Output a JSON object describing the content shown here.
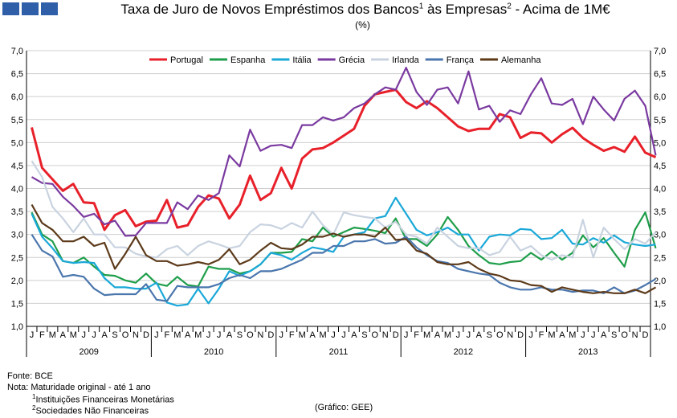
{
  "header": {
    "title_part1": "Taxa de Juro de Novos Empréstimos dos Bancos",
    "title_sup1": "1",
    "title_part2": " às Empresas",
    "title_sup2": "2",
    "title_part3": " - Acima de 1M€",
    "unit": "(%)"
  },
  "footer": {
    "source": "Fonte: BCE",
    "note": "Nota: Maturidade original - até 1 ano",
    "note1_sup": "1",
    "note1": "Instituições Financeiras Monetárias",
    "note2_sup": "2",
    "note2": "Sociedades Não Financeiras",
    "credit": "(Gráfico: GEE)"
  },
  "colors": {
    "header_blocks": "#2f5fa8"
  },
  "chart_data": {
    "type": "line",
    "ylim": [
      1.0,
      7.0
    ],
    "yticks": [
      "1,0",
      "1,5",
      "2,0",
      "2,5",
      "3,0",
      "3,5",
      "4,0",
      "4,5",
      "5,0",
      "5,5",
      "6,0",
      "6,5",
      "7,0"
    ],
    "grid": "horizontal",
    "legend_position": "top",
    "month_labels": [
      "J",
      "F",
      "M",
      "A",
      "M",
      "J",
      "J",
      "A",
      "S",
      "O",
      "N",
      "D"
    ],
    "years": [
      "2009",
      "2010",
      "2011",
      "2012",
      "2013"
    ],
    "series": [
      {
        "name": "Portugal",
        "color": "#e8202a",
        "values": [
          5.33,
          4.45,
          4.2,
          3.95,
          4.1,
          3.7,
          3.68,
          3.1,
          3.42,
          3.53,
          3.18,
          3.28,
          3.3,
          3.75,
          3.15,
          3.2,
          3.6,
          3.85,
          3.78,
          3.35,
          3.65,
          4.28,
          3.75,
          3.9,
          4.45,
          4.0,
          4.65,
          4.85,
          4.88,
          5.0,
          5.15,
          5.3,
          5.8,
          6.05,
          6.1,
          6.15,
          5.88,
          5.75,
          5.9,
          5.75,
          5.55,
          5.35,
          5.25,
          5.3,
          5.3,
          5.62,
          5.55,
          5.1,
          5.22,
          5.2,
          5.0,
          5.18,
          5.32,
          5.1,
          4.95,
          4.82,
          4.9,
          4.8,
          5.13,
          4.78,
          4.68
        ]
      },
      {
        "name": "Espanha",
        "color": "#1e9e4a",
        "values": [
          3.48,
          3.0,
          2.85,
          2.42,
          2.38,
          2.5,
          2.3,
          2.12,
          2.1,
          2.0,
          1.95,
          2.15,
          1.93,
          1.88,
          2.08,
          1.9,
          1.87,
          2.3,
          2.25,
          2.25,
          2.15,
          2.2,
          2.35,
          2.6,
          2.6,
          2.62,
          2.9,
          2.85,
          3.15,
          2.95,
          3.05,
          3.15,
          3.12,
          3.08,
          3.03,
          3.35,
          2.9,
          2.9,
          2.75,
          3.0,
          3.38,
          3.1,
          2.75,
          2.55,
          2.38,
          2.35,
          2.4,
          2.42,
          2.6,
          2.45,
          2.63,
          2.45,
          2.6,
          2.98,
          2.72,
          2.92,
          2.6,
          2.3,
          3.1,
          3.48,
          2.7
        ]
      },
      {
        "name": "Itália",
        "color": "#1aa8d8",
        "values": [
          3.45,
          2.95,
          2.7,
          2.42,
          2.38,
          2.4,
          2.38,
          2.05,
          1.85,
          1.85,
          1.82,
          1.82,
          1.95,
          1.52,
          1.45,
          1.48,
          1.82,
          1.5,
          1.82,
          2.2,
          2.1,
          2.2,
          2.35,
          2.6,
          2.55,
          2.45,
          2.6,
          2.72,
          2.68,
          2.62,
          2.95,
          3.0,
          3.05,
          3.35,
          3.4,
          3.8,
          3.45,
          3.1,
          2.98,
          3.05,
          3.15,
          3.0,
          3.0,
          2.65,
          2.95,
          3.0,
          2.98,
          3.12,
          3.1,
          2.9,
          2.92,
          3.1,
          2.8,
          2.78,
          2.92,
          2.82,
          2.98,
          2.83,
          2.78,
          2.75,
          2.78
        ]
      },
      {
        "name": "Grécia",
        "color": "#7a3aa0",
        "values": [
          4.25,
          4.12,
          4.1,
          3.82,
          3.62,
          3.38,
          3.45,
          3.22,
          3.3,
          2.97,
          2.98,
          3.25,
          3.25,
          3.25,
          3.7,
          3.55,
          3.85,
          3.75,
          3.9,
          4.72,
          4.48,
          5.28,
          4.82,
          4.93,
          4.95,
          4.88,
          5.38,
          5.38,
          5.55,
          5.48,
          5.55,
          5.75,
          5.85,
          6.05,
          6.2,
          6.15,
          6.63,
          6.1,
          5.82,
          6.15,
          6.2,
          5.85,
          6.55,
          5.72,
          5.8,
          5.45,
          5.7,
          5.62,
          6.05,
          6.4,
          5.85,
          5.82,
          5.95,
          5.4,
          6.0,
          5.72,
          5.48,
          5.95,
          6.13,
          5.8,
          4.72
        ]
      },
      {
        "name": "Irlanda",
        "color": "#c9d3e0",
        "values": [
          4.6,
          4.25,
          3.6,
          3.35,
          3.05,
          3.35,
          3.0,
          3.0,
          2.72,
          2.72,
          2.58,
          2.52,
          2.5,
          2.68,
          2.75,
          2.55,
          2.75,
          2.85,
          2.78,
          2.7,
          2.75,
          3.05,
          3.22,
          3.2,
          3.12,
          3.25,
          3.15,
          3.5,
          3.2,
          3.0,
          3.48,
          3.42,
          3.38,
          3.35,
          3.15,
          3.28,
          3.0,
          2.95,
          2.8,
          3.15,
          2.95,
          2.75,
          2.7,
          2.7,
          2.55,
          2.62,
          2.95,
          2.65,
          2.75,
          2.55,
          2.45,
          2.55,
          2.5,
          3.32,
          2.5,
          3.15,
          2.9,
          2.68,
          2.9,
          2.8,
          3.05
        ]
      },
      {
        "name": "França",
        "color": "#4a76ad",
        "values": [
          3.0,
          2.65,
          2.52,
          2.08,
          2.12,
          2.08,
          1.82,
          1.68,
          1.7,
          1.7,
          1.7,
          1.92,
          1.58,
          1.55,
          1.88,
          1.85,
          1.85,
          1.85,
          1.92,
          2.05,
          2.12,
          2.05,
          2.2,
          2.2,
          2.25,
          2.35,
          2.45,
          2.6,
          2.6,
          2.75,
          2.75,
          2.85,
          2.85,
          2.9,
          2.8,
          2.82,
          2.95,
          2.72,
          2.55,
          2.42,
          2.38,
          2.25,
          2.2,
          2.15,
          2.12,
          1.95,
          1.85,
          1.8,
          1.8,
          1.85,
          1.8,
          1.8,
          1.75,
          1.78,
          1.78,
          1.72,
          1.85,
          1.72,
          1.78,
          1.9,
          2.03
        ]
      },
      {
        "name": "Alemanha",
        "color": "#5c3a1a",
        "values": [
          3.65,
          3.25,
          3.1,
          2.85,
          2.85,
          2.95,
          2.75,
          2.82,
          2.25,
          2.58,
          2.95,
          2.55,
          2.42,
          2.42,
          2.32,
          2.35,
          2.4,
          2.35,
          2.45,
          2.68,
          2.35,
          2.45,
          2.65,
          2.82,
          2.7,
          2.68,
          2.78,
          2.95,
          2.95,
          3.02,
          2.95,
          3.0,
          3.0,
          2.95,
          3.15,
          2.88,
          2.9,
          2.65,
          2.58,
          2.4,
          2.35,
          2.35,
          2.4,
          2.25,
          2.15,
          2.1,
          2.0,
          1.98,
          1.9,
          1.88,
          1.75,
          1.85,
          1.8,
          1.75,
          1.72,
          1.75,
          1.72,
          1.72,
          1.8,
          1.72,
          1.85
        ]
      }
    ]
  }
}
